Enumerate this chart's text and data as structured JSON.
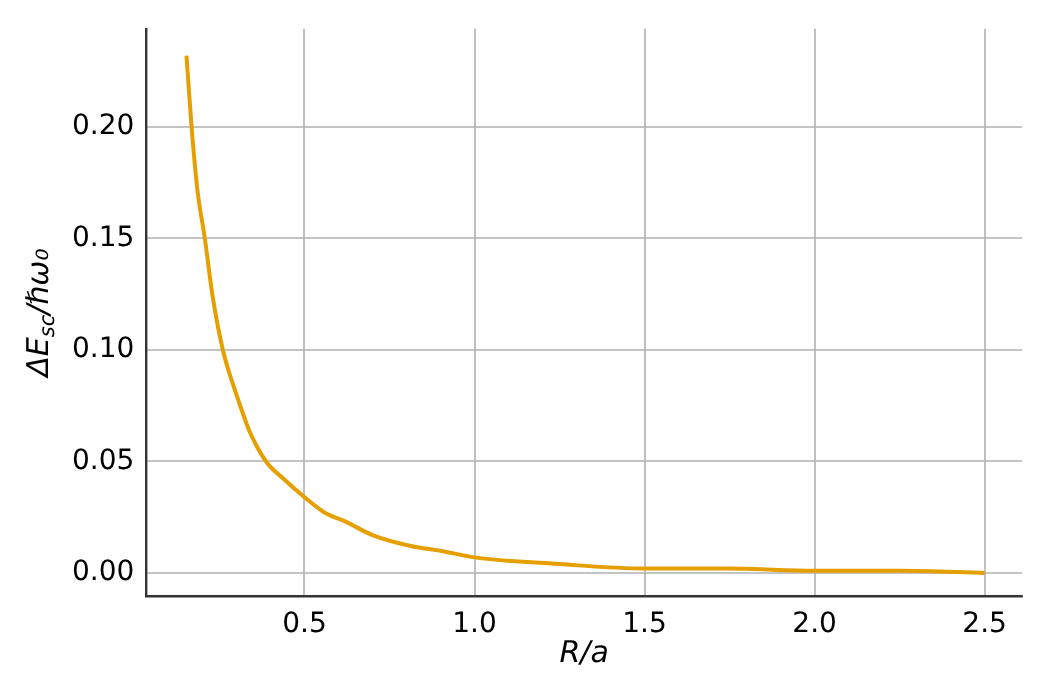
{
  "chart_data": {
    "type": "line",
    "xlabel": "R/a",
    "ylabel": "ΔE$_{sc}$/ℏω₀",
    "series": [
      {
        "color": "#e69f00",
        "x": [
          0.153,
          0.168,
          0.185,
          0.207,
          0.23,
          0.26,
          0.3,
          0.34,
          0.387,
          0.44,
          0.5,
          0.56,
          0.621,
          0.7,
          0.816,
          0.9,
          1.0,
          1.25,
          1.5,
          1.75,
          2.0,
          2.25,
          2.5
        ],
        "values": [
          0.232,
          0.2,
          0.172,
          0.15,
          0.124,
          0.1,
          0.08,
          0.063,
          0.05,
          0.042,
          0.034,
          0.027,
          0.023,
          0.017,
          0.012,
          0.01,
          0.007,
          0.004,
          0.002,
          0.002,
          0.001,
          0.001,
          0
        ]
      }
    ],
    "xlim": [
      0.035,
      2.61
    ],
    "ylim": [
      -0.0105,
      0.244
    ],
    "xticks": [
      0.5,
      {
        "value": 1,
        "label": "1.0"
      },
      1.5,
      {
        "value": 2,
        "label": "2.0"
      },
      2.5
    ],
    "yticks": [
      {
        "value": 0,
        "label": "0.00"
      },
      {
        "value": 0.05,
        "label": "0.05"
      },
      {
        "value": 0.1,
        "label": "0.10"
      },
      {
        "value": 0.15,
        "label": "0.15"
      },
      {
        "value": 0.2,
        "label": "0.20"
      }
    ],
    "grid": true,
    "line_style": "solid",
    "marker": "none",
    "legend": false
  }
}
